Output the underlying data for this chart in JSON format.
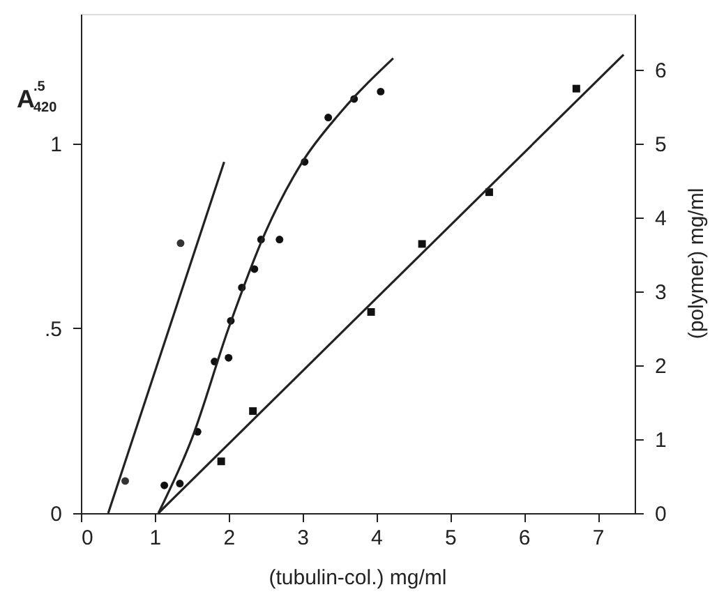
{
  "chart_data": {
    "type": "scatter",
    "xlabel": "(tubulin-col.)  mg/ml",
    "ylabel": "A$^{.5}$$_{420}$",
    "y2label": "(polymer)  mg/ml",
    "xlim": [
      0,
      7.5
    ],
    "xticks": [
      0,
      1,
      2,
      3,
      4,
      5,
      6,
      7
    ],
    "ylim": [
      0,
      1.35
    ],
    "yticks": [
      0,
      {
        "value": 0.5,
        "label": ".5"
      },
      1
    ],
    "y2lim": [
      0,
      6.75
    ],
    "y2ticks": [
      0,
      1,
      2,
      3,
      4,
      5,
      6
    ],
    "grid": false,
    "series": [
      {
        "marker": "circle",
        "color": "#333333",
        "x": [
          0.6,
          1.35
        ],
        "values": [
          0.087,
          0.73
        ]
      },
      {
        "type": "line",
        "marker": "none",
        "line_style": "solid",
        "color": "#222222",
        "x": [
          0.37,
          1.94
        ],
        "values": [
          0,
          0.95
        ]
      },
      {
        "marker": "circle",
        "color": "#111111",
        "x": [
          1.13,
          1.34,
          1.58,
          1.81,
          2.0,
          2.03,
          2.18,
          2.35,
          2.44,
          2.69,
          3.03,
          3.35,
          3.7,
          4.06
        ],
        "values": [
          0.075,
          0.08,
          0.22,
          0.41,
          0.42,
          0.52,
          0.61,
          0.66,
          0.74,
          0.74,
          0.95,
          1.07,
          1.12,
          1.14
        ]
      },
      {
        "type": "line",
        "marker": "none",
        "line_style": "solid",
        "color": "#222222",
        "x": [
          1.05,
          1.5,
          2.0,
          2.5,
          3.0,
          3.5,
          4.23
        ],
        "values": [
          0,
          0.2,
          0.5,
          0.76,
          0.95,
          1.08,
          1.23
        ]
      },
      {
        "marker": "square",
        "axis": "y2",
        "color": "#111111",
        "x": [
          1.9,
          2.33,
          3.93,
          4.62,
          5.53,
          6.71
        ],
        "values": [
          0.7,
          1.38,
          2.72,
          3.64,
          4.34,
          5.74
        ]
      },
      {
        "type": "line",
        "marker": "none",
        "line_style": "solid",
        "axis": "y2",
        "color": "#222222",
        "x": [
          1.05,
          7.35
        ],
        "values": [
          0,
          6.2
        ]
      }
    ]
  }
}
